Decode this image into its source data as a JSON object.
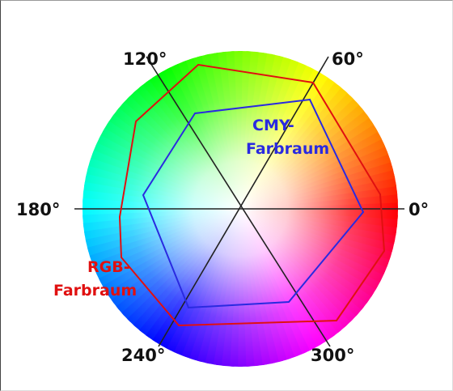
{
  "diagram": {
    "angle_labels": {
      "a0": "0°",
      "a60": "60°",
      "a120": "120°",
      "a180": "180°",
      "a240": "240°",
      "a300": "300°"
    },
    "cmy_space": {
      "line1": "CMY-",
      "line2": "Farbraum",
      "color": "#2a2ae0"
    },
    "rgb_space": {
      "line1": "RGB-",
      "line2": "Farbraum",
      "color": "#e01010"
    }
  }
}
